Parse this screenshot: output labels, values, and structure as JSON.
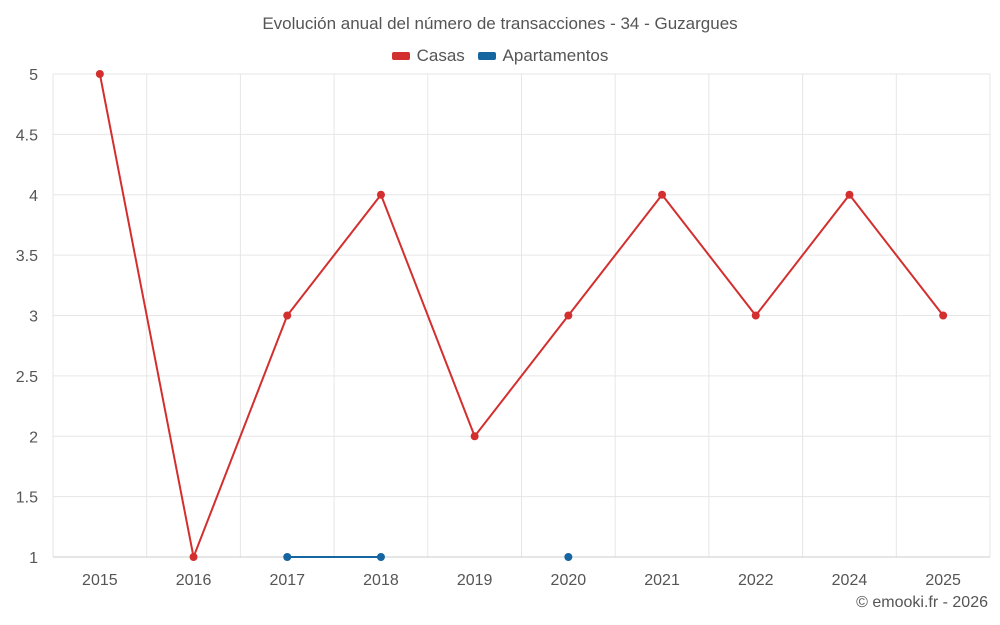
{
  "chart_data": {
    "type": "line",
    "title": "Evolución anual del número de transacciones - 34 - Guzargues",
    "xlabel": "",
    "ylabel": "",
    "categories": [
      "2015",
      "2016",
      "2017",
      "2018",
      "2019",
      "2020",
      "2021",
      "2022",
      "2024",
      "2025"
    ],
    "ylim": [
      1,
      5
    ],
    "yticks": [
      "1",
      "1.5",
      "2",
      "2.5",
      "3",
      "3.5",
      "4",
      "4.5",
      "5"
    ],
    "grid": true,
    "legend_position": "top-center",
    "series": [
      {
        "name": "Casas",
        "color": "#d32f2f",
        "values": [
          5,
          1,
          3,
          4,
          2,
          3,
          4,
          3,
          4,
          3
        ]
      },
      {
        "name": "Apartamentos",
        "color": "#1565a0",
        "values": [
          null,
          null,
          1,
          1,
          null,
          1,
          null,
          null,
          null,
          null
        ]
      }
    ]
  },
  "credit": "© emooki.fr - 2026"
}
